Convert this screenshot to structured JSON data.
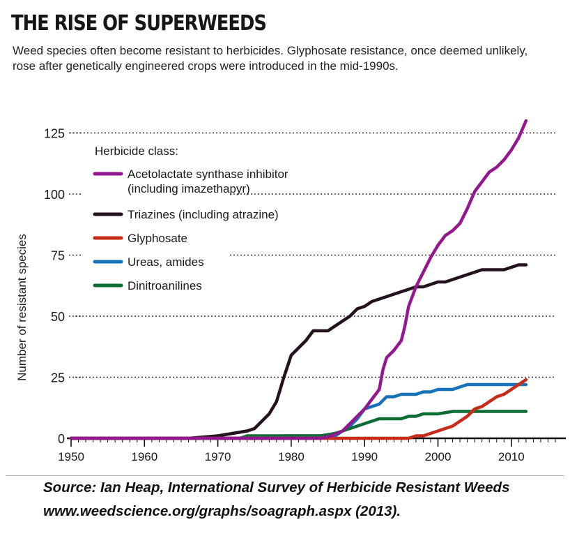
{
  "colors": {
    "als": "#93178f",
    "triazines": "#23121f",
    "glyphosate": "#c72c1a",
    "ureas": "#1773b9",
    "dinitroanilines": "#0e6c35"
  },
  "chart_data": {
    "type": "line",
    "title": "THE RISE OF SUPERWEEDS",
    "subtitle": "Weed species often become resistant to herbicides. Glyphosate resistance, once deemed unlikely, rose after genetically engineered crops were introduced in the mid-1990s.",
    "xlabel": "",
    "ylabel": "Number of resistant species",
    "xlim": [
      1950,
      2016
    ],
    "ylim": [
      0,
      130
    ],
    "xticks": [
      1950,
      1960,
      1970,
      1980,
      1990,
      2000,
      2010
    ],
    "yticks": [
      0,
      25,
      50,
      75,
      100,
      125
    ],
    "legend_title": "Herbicide class:",
    "legend_position": "top-left",
    "grid": "dotted horizontal",
    "series": [
      {
        "name": "Acetolactate synthase inhibitor (including imazethapyr)",
        "label_lines": [
          "Acetolactate synthase inhibitor",
          "(including imazethapyr)"
        ],
        "color_key": "als",
        "points": [
          [
            1950,
            0
          ],
          [
            1984,
            0
          ],
          [
            1985.5,
            1
          ],
          [
            1987,
            3
          ],
          [
            1988,
            6
          ],
          [
            1989,
            9
          ],
          [
            1990,
            12
          ],
          [
            1991,
            16
          ],
          [
            1992,
            20
          ],
          [
            1992.5,
            28
          ],
          [
            1993,
            33
          ],
          [
            1994,
            36
          ],
          [
            1995,
            40
          ],
          [
            1995.5,
            46
          ],
          [
            1996,
            54
          ],
          [
            1997,
            62
          ],
          [
            1998,
            68
          ],
          [
            1999,
            74
          ],
          [
            2000,
            79
          ],
          [
            2001,
            83
          ],
          [
            2002,
            85
          ],
          [
            2003,
            88
          ],
          [
            2004,
            94
          ],
          [
            2005,
            101
          ],
          [
            2006,
            105
          ],
          [
            2007,
            109
          ],
          [
            2008,
            111
          ],
          [
            2009,
            114
          ],
          [
            2010,
            118
          ],
          [
            2011,
            123
          ],
          [
            2012,
            130
          ]
        ]
      },
      {
        "name": "Triazines (including atrazine)",
        "label_lines": [
          "Triazines (including atrazine)"
        ],
        "color_key": "triazines",
        "points": [
          [
            1950,
            0
          ],
          [
            1966,
            0
          ],
          [
            1970,
            1
          ],
          [
            1972,
            2
          ],
          [
            1974,
            3
          ],
          [
            1975,
            4
          ],
          [
            1976,
            7
          ],
          [
            1977,
            10
          ],
          [
            1978,
            15
          ],
          [
            1979,
            25
          ],
          [
            1980,
            34
          ],
          [
            1981,
            37
          ],
          [
            1982,
            40
          ],
          [
            1983,
            44
          ],
          [
            1984,
            44
          ],
          [
            1985,
            44
          ],
          [
            1986,
            46
          ],
          [
            1987,
            48
          ],
          [
            1988,
            50
          ],
          [
            1989,
            53
          ],
          [
            1990,
            54
          ],
          [
            1991,
            56
          ],
          [
            1992,
            57
          ],
          [
            1993,
            58
          ],
          [
            1994,
            59
          ],
          [
            1995,
            60
          ],
          [
            1996,
            61
          ],
          [
            1997,
            62
          ],
          [
            1998,
            62
          ],
          [
            1999,
            63
          ],
          [
            2000,
            64
          ],
          [
            2001,
            64
          ],
          [
            2002,
            65
          ],
          [
            2003,
            66
          ],
          [
            2004,
            67
          ],
          [
            2005,
            68
          ],
          [
            2006,
            69
          ],
          [
            2007,
            69
          ],
          [
            2008,
            69
          ],
          [
            2009,
            69
          ],
          [
            2010,
            70
          ],
          [
            2011,
            71
          ],
          [
            2012,
            71
          ]
        ]
      },
      {
        "name": "Glyphosate",
        "label_lines": [
          "Glyphosate"
        ],
        "color_key": "glyphosate",
        "points": [
          [
            1950,
            0
          ],
          [
            1995,
            0
          ],
          [
            1996,
            0
          ],
          [
            1997,
            1
          ],
          [
            1998,
            1
          ],
          [
            1999,
            2
          ],
          [
            2000,
            3
          ],
          [
            2001,
            4
          ],
          [
            2002,
            5
          ],
          [
            2003,
            7
          ],
          [
            2004,
            9
          ],
          [
            2005,
            12
          ],
          [
            2006,
            13
          ],
          [
            2007,
            15
          ],
          [
            2008,
            17
          ],
          [
            2009,
            18
          ],
          [
            2010,
            20
          ],
          [
            2011,
            22
          ],
          [
            2012,
            24
          ]
        ]
      },
      {
        "name": "Ureas, amides",
        "label_lines": [
          "Ureas, amides"
        ],
        "color_key": "ureas",
        "points": [
          [
            1950,
            0
          ],
          [
            1978,
            0
          ],
          [
            1979,
            1
          ],
          [
            1980,
            1
          ],
          [
            1986,
            1
          ],
          [
            1987,
            3
          ],
          [
            1988,
            5
          ],
          [
            1989,
            8
          ],
          [
            1990,
            12
          ],
          [
            1991,
            13
          ],
          [
            1992,
            14
          ],
          [
            1993,
            17
          ],
          [
            1994,
            17
          ],
          [
            1995,
            18
          ],
          [
            1996,
            18
          ],
          [
            1997,
            18
          ],
          [
            1998,
            19
          ],
          [
            1999,
            19
          ],
          [
            2000,
            20
          ],
          [
            2001,
            20
          ],
          [
            2002,
            20
          ],
          [
            2003,
            21
          ],
          [
            2004,
            22
          ],
          [
            2005,
            22
          ],
          [
            2006,
            22
          ],
          [
            2008,
            22
          ],
          [
            2010,
            22
          ],
          [
            2012,
            22
          ]
        ]
      },
      {
        "name": "Dinitroanilines",
        "label_lines": [
          "Dinitroanilines"
        ],
        "color_key": "dinitroanilines",
        "points": [
          [
            1950,
            0
          ],
          [
            1973,
            0
          ],
          [
            1974,
            1
          ],
          [
            1984,
            1
          ],
          [
            1986,
            2
          ],
          [
            1987,
            3
          ],
          [
            1988,
            4
          ],
          [
            1989,
            5
          ],
          [
            1990,
            6
          ],
          [
            1991,
            7
          ],
          [
            1992,
            8
          ],
          [
            1993,
            8
          ],
          [
            1994,
            8
          ],
          [
            1995,
            8
          ],
          [
            1996,
            9
          ],
          [
            1997,
            9
          ],
          [
            1998,
            10
          ],
          [
            1999,
            10
          ],
          [
            2000,
            10
          ],
          [
            2002,
            11
          ],
          [
            2006,
            11
          ],
          [
            2010,
            11
          ],
          [
            2012,
            11
          ]
        ]
      }
    ]
  },
  "source_lines": [
    "Source: Ian Heap, International Survey of Herbicide Resistant Weeds",
    "www.weedscience.org/graphs/soagraph.aspx (2013)."
  ]
}
